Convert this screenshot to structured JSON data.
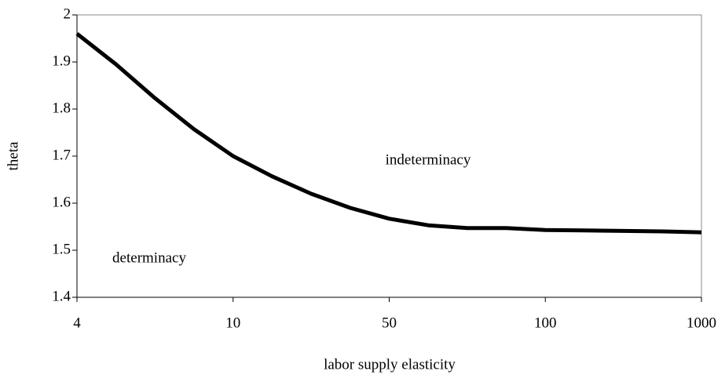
{
  "chart_data": {
    "type": "line",
    "x_label": "labor supply elasticity",
    "y_label": "theta",
    "annotations": [
      "indeterminacy",
      "determinacy"
    ],
    "categories": [
      "4",
      null,
      null,
      null,
      "10",
      null,
      null,
      null,
      "50",
      null,
      null,
      null,
      "100",
      null,
      null,
      null,
      "1000"
    ],
    "values": [
      1.96,
      1.895,
      1.823,
      1.757,
      1.7,
      1.657,
      1.62,
      1.59,
      1.567,
      1.553,
      1.547,
      1.547,
      1.543,
      1.542,
      1.541,
      1.54,
      1.538
    ],
    "color": "#000000",
    "ylim": [
      1.4,
      2
    ],
    "yticks": [
      {
        "value": 1.4,
        "label": "1.4"
      },
      {
        "value": 1.5,
        "label": "1.5"
      },
      {
        "value": 1.6,
        "label": "1.6"
      },
      {
        "value": 1.7,
        "label": "1.7"
      },
      {
        "value": 1.8,
        "label": "1.8"
      },
      {
        "value": 1.9,
        "label": "1.9"
      },
      2
    ],
    "grid": false
  }
}
